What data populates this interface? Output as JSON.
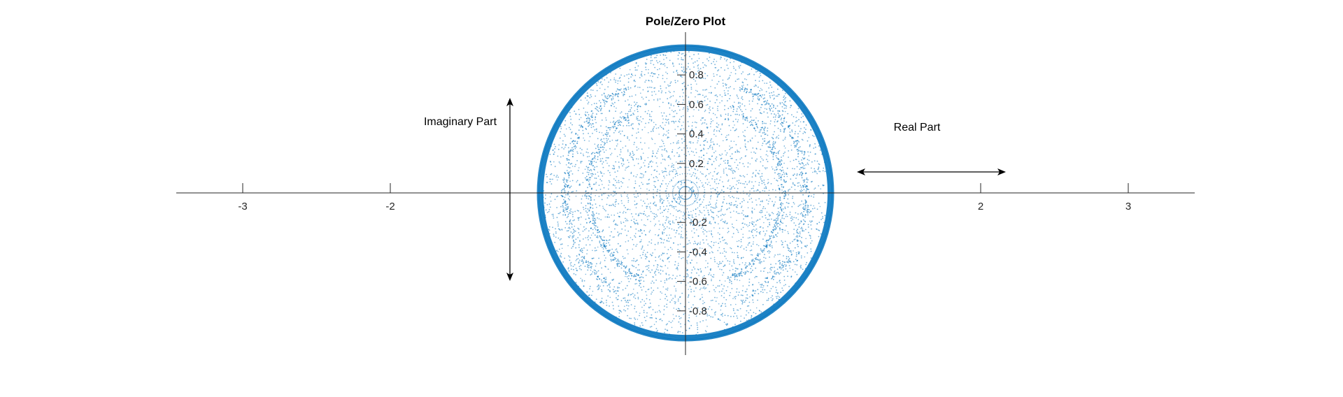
{
  "chart_data": {
    "type": "scatter",
    "title": "Pole/Zero Plot",
    "xlabel": "",
    "ylabel": "",
    "xlim": [
      -3.45,
      3.45
    ],
    "ylim": [
      -1.1,
      1.1
    ],
    "x_ticks": [
      -3,
      -2,
      2,
      3
    ],
    "x_tick_labels": [
      "-3",
      "-2",
      "2",
      "3"
    ],
    "y_ticks": [
      0.8,
      0.6,
      0.4,
      0.2,
      -0.2,
      -0.4,
      -0.6,
      -0.8
    ],
    "y_tick_labels": [
      "0.8",
      "0.6",
      "0.4",
      "0.2",
      "-0.2",
      "-0.4",
      "-0.6",
      "-0.8"
    ],
    "unit_circle": {
      "center": [
        0,
        0
      ],
      "radius": 1
    },
    "series": [
      {
        "color": "#0072BD",
        "description_values": "dense dotted pole/zero markers filling the unit circle, with a thick dark ring at radius ~0.98-1.0"
      }
    ],
    "annotations": [
      {
        "text": "Imaginary Part",
        "arrow": "vertical-double"
      },
      {
        "text": "Real Part",
        "arrow": "horizontal-double"
      }
    ],
    "grid": false,
    "axis_color": "#262626"
  }
}
